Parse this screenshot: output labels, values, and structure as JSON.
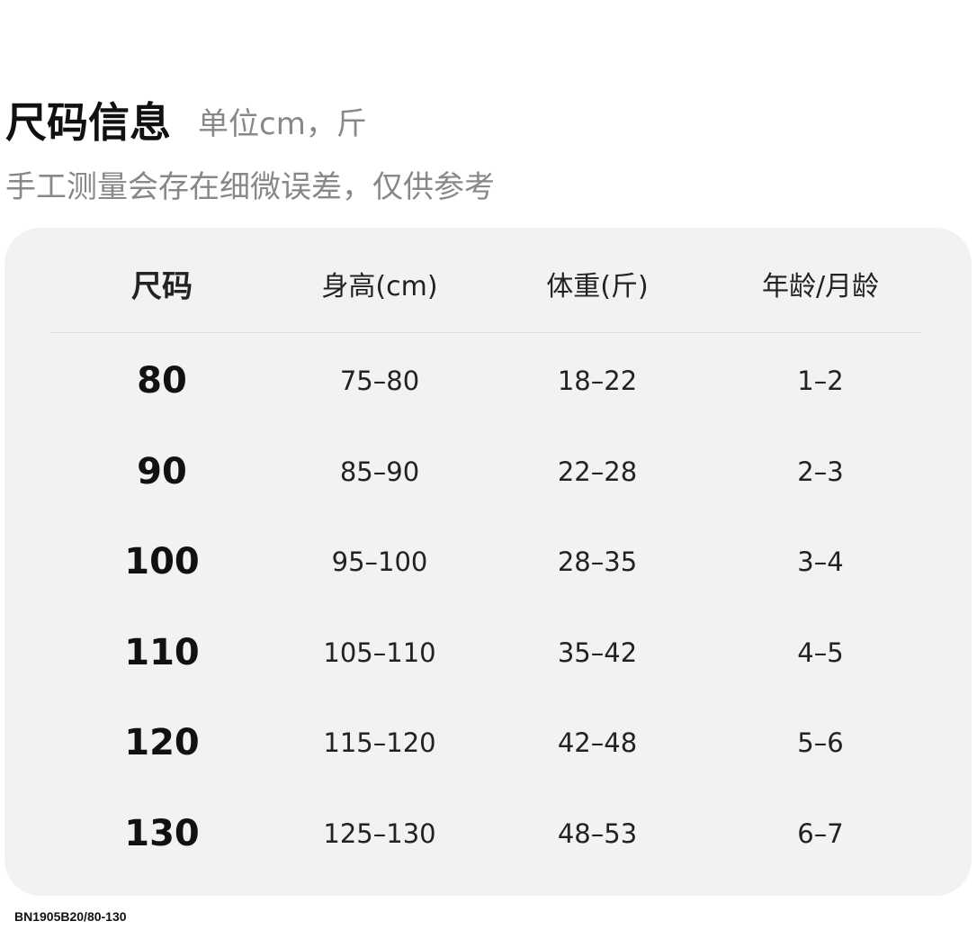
{
  "header": {
    "title": "尺码信息",
    "unit": "单位cm，斤",
    "note": "手工测量会存在细微误差，仅供参考"
  },
  "table": {
    "columns": [
      "尺码",
      "身高(cm)",
      "体重(斤)",
      "年龄/月龄"
    ],
    "rows": [
      [
        "80",
        "75–80",
        "18–22",
        "1–2"
      ],
      [
        "90",
        "85–90",
        "22–28",
        "2–3"
      ],
      [
        "100",
        "95–100",
        "28–35",
        "3–4"
      ],
      [
        "110",
        "105–110",
        "35–42",
        "4–5"
      ],
      [
        "120",
        "115–120",
        "42–48",
        "5–6"
      ],
      [
        "130",
        "125–130",
        "48–53",
        "6–7"
      ]
    ]
  },
  "footer": {
    "product_code": "BN1905B20/80-130"
  }
}
